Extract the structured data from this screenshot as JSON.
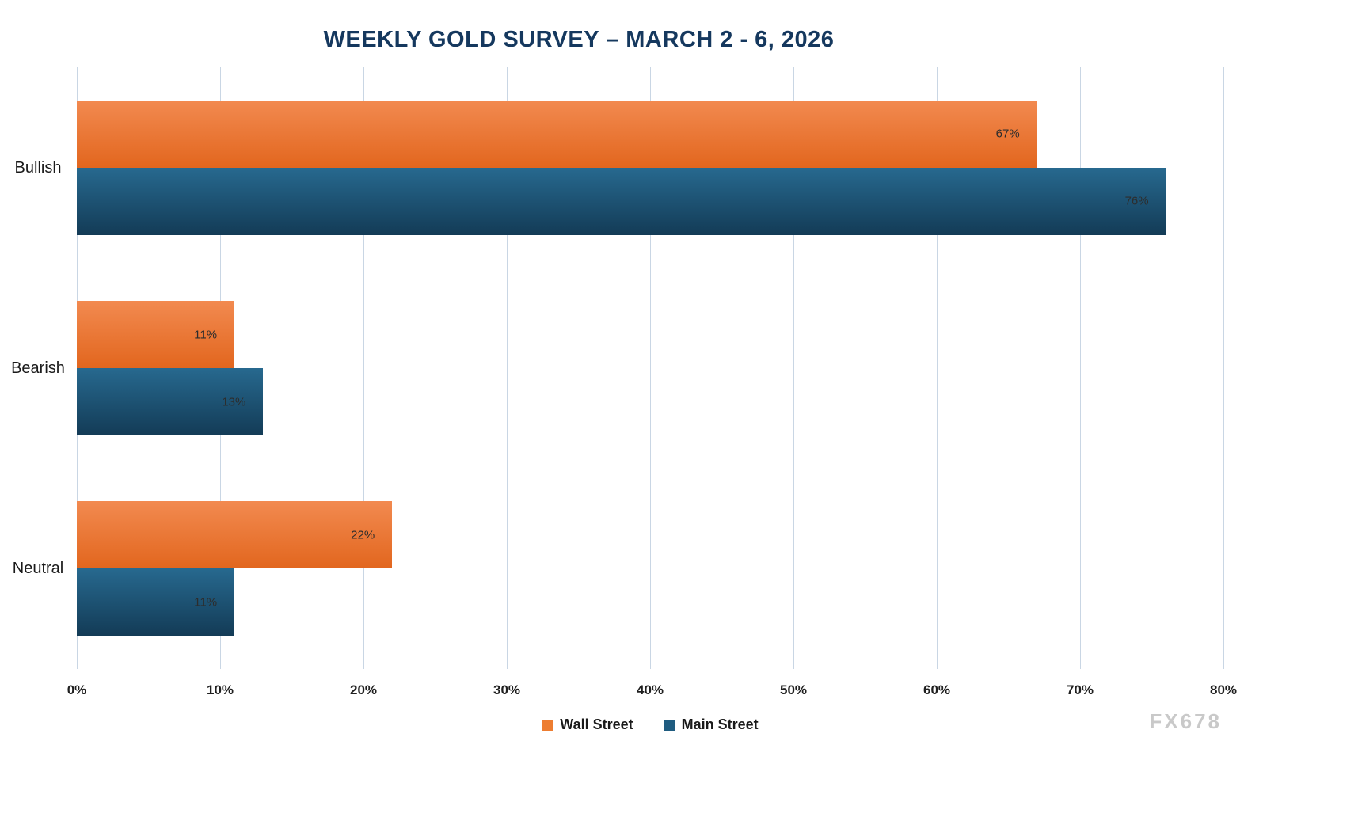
{
  "title": "WEEKLY GOLD SURVEY – MARCH 2 - 6, 2026",
  "watermark": "FX678",
  "chart_data": {
    "type": "bar",
    "orientation": "horizontal",
    "title": "WEEKLY GOLD SURVEY – MARCH 2 - 6, 2026",
    "categories": [
      "Bullish",
      "Bearish",
      "Neutral"
    ],
    "series": [
      {
        "name": "Wall Street",
        "values": [
          67,
          11,
          22
        ],
        "legend_color": "#ED7D31",
        "color_top": "#F28A50",
        "color_bottom": "#E2661E"
      },
      {
        "name": "Main Street",
        "values": [
          76,
          13,
          11
        ],
        "legend_color": "#1F5C80",
        "color_top": "#27698F",
        "color_bottom": "#133B56"
      }
    ],
    "value_suffix": "%",
    "x_ticks": [
      0,
      10,
      20,
      30,
      40,
      50,
      60,
      70,
      80
    ],
    "x_tick_labels": [
      "0%",
      "10%",
      "20%",
      "30%",
      "40%",
      "50%",
      "60%",
      "70%",
      "80%"
    ],
    "xlim": [
      0,
      80
    ],
    "xlabel": "",
    "ylabel": "",
    "grid": true,
    "gridline_color": "#C9D6E4",
    "legend_position": "bottom",
    "title_color": "#15385E"
  }
}
